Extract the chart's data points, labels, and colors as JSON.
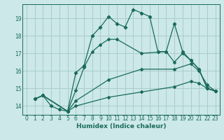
{
  "background_color": "#cce8e8",
  "grid_color": "#aacccc",
  "line_color": "#1a6b5a",
  "xlim": [
    -0.5,
    23.5
  ],
  "ylim": [
    13.5,
    19.8
  ],
  "xticks": [
    0,
    1,
    2,
    3,
    4,
    5,
    6,
    7,
    8,
    9,
    10,
    11,
    12,
    13,
    14,
    15,
    16,
    17,
    18,
    19,
    20,
    21,
    22,
    23
  ],
  "yticks": [
    14,
    15,
    16,
    17,
    18,
    19
  ],
  "xlabel": "Humidex (Indice chaleur)",
  "series": [
    {
      "x": [
        1,
        2,
        3,
        4,
        5,
        6,
        7,
        8,
        9,
        10,
        11,
        12,
        13,
        14,
        15,
        16,
        17,
        18,
        19,
        20,
        21,
        22,
        23
      ],
      "y": [
        14.4,
        14.6,
        14.0,
        13.8,
        13.7,
        15.9,
        16.3,
        18.0,
        18.5,
        19.1,
        18.7,
        18.5,
        19.5,
        19.3,
        19.1,
        17.1,
        17.1,
        18.7,
        17.1,
        16.6,
        16.1,
        15.0,
        14.85
      ]
    },
    {
      "x": [
        1,
        2,
        5,
        6,
        7,
        8,
        9,
        10,
        11,
        14,
        17,
        18,
        19,
        20,
        21,
        22,
        23
      ],
      "y": [
        14.4,
        14.6,
        13.7,
        14.9,
        16.2,
        17.1,
        17.5,
        17.8,
        17.8,
        17.0,
        17.1,
        16.5,
        17.0,
        16.6,
        16.1,
        15.0,
        14.85
      ]
    },
    {
      "x": [
        1,
        2,
        5,
        6,
        10,
        14,
        18,
        20,
        21,
        22,
        23
      ],
      "y": [
        14.4,
        14.6,
        13.7,
        14.3,
        15.5,
        16.1,
        16.1,
        16.4,
        16.0,
        15.2,
        14.85
      ]
    },
    {
      "x": [
        1,
        2,
        5,
        6,
        10,
        14,
        18,
        20,
        21,
        22,
        23
      ],
      "y": [
        14.4,
        14.6,
        13.7,
        14.0,
        14.5,
        14.8,
        15.1,
        15.4,
        15.3,
        15.0,
        14.85
      ]
    }
  ]
}
